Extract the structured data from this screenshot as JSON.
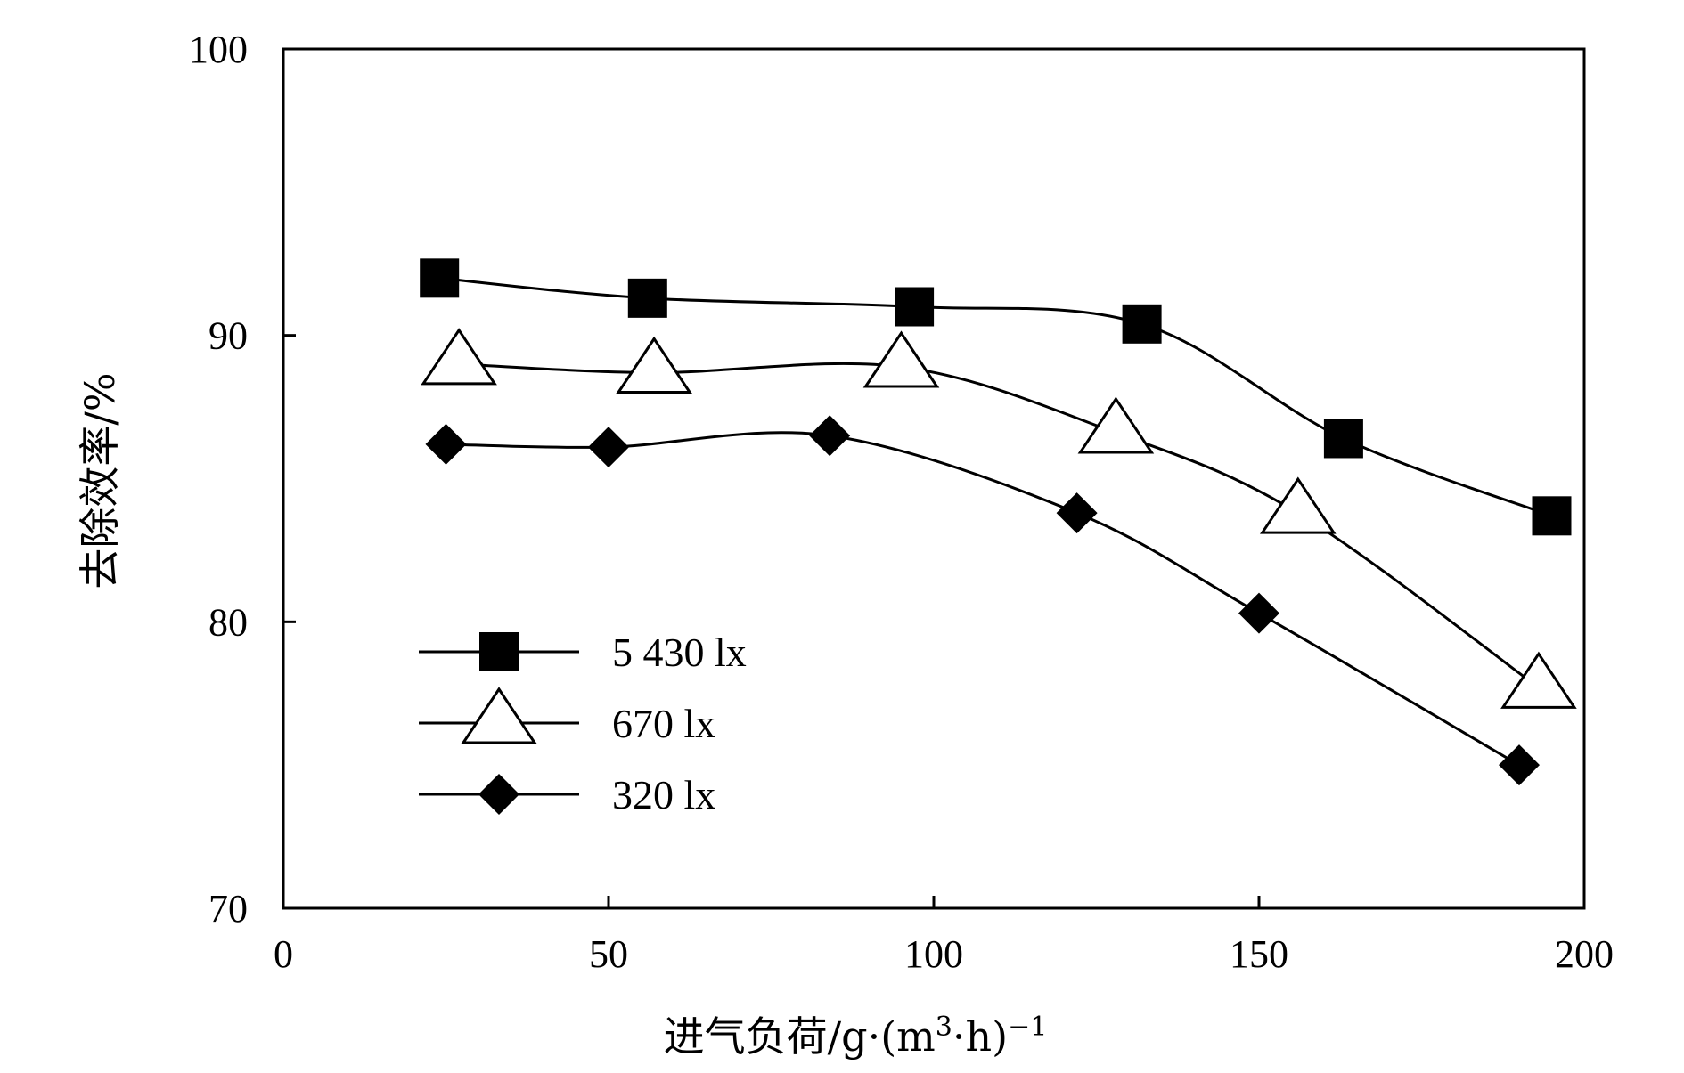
{
  "chart_data": {
    "type": "line",
    "title": "",
    "xlabel": "进气负荷/g·(m³·h)⁻¹",
    "xlabel_parts": {
      "main": "进气负荷/g·(m",
      "sup1": "3",
      "mid": "·h)",
      "sup2": "−1"
    },
    "ylabel": "去除效率/%",
    "xlim": [
      0,
      200
    ],
    "ylim": [
      70,
      100
    ],
    "xticks": [
      0,
      50,
      100,
      150,
      200
    ],
    "yticks": [
      70,
      80,
      90,
      100
    ],
    "grid": false,
    "legend_position": "lower-left",
    "series": [
      {
        "name": "5 430 lx",
        "marker": "square",
        "x": [
          24,
          56,
          97,
          132,
          163,
          195
        ],
        "y": [
          92.0,
          91.3,
          91.0,
          90.4,
          86.4,
          83.7
        ]
      },
      {
        "name": "670 lx",
        "marker": "triangle",
        "x": [
          27,
          57,
          95,
          128,
          156,
          193
        ],
        "y": [
          89.0,
          88.7,
          88.9,
          86.6,
          83.8,
          77.7
        ]
      },
      {
        "name": "320 lx",
        "marker": "diamond",
        "x": [
          25,
          50,
          84,
          122,
          150,
          190
        ],
        "y": [
          86.2,
          86.1,
          86.5,
          83.8,
          80.3,
          75.0
        ]
      }
    ]
  }
}
